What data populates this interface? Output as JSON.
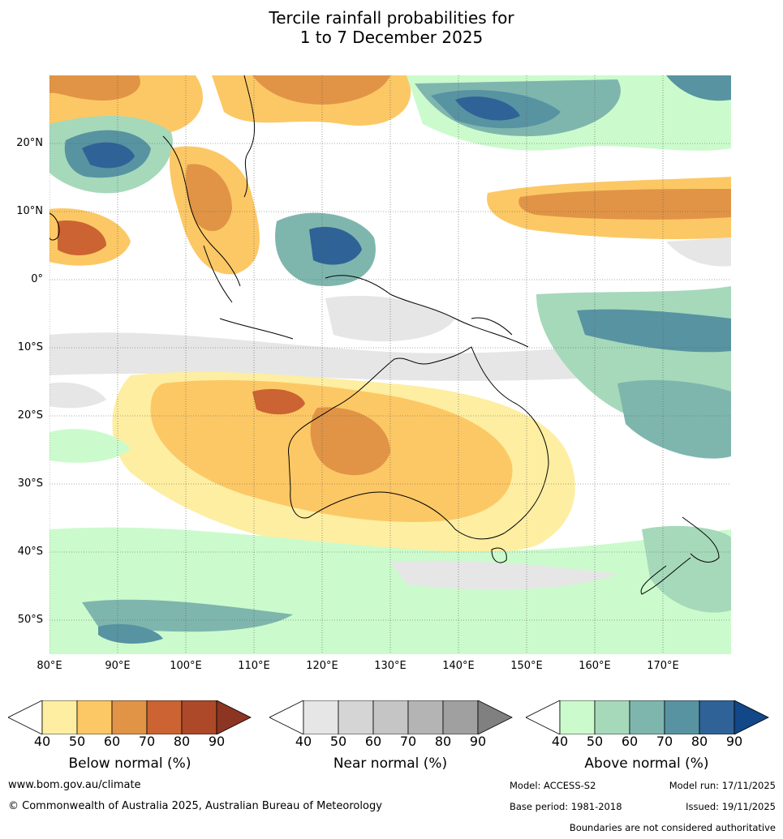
{
  "title": {
    "line1": "Tercile rainfall probabilities for",
    "line2": "1 to 7 December 2025"
  },
  "map": {
    "lon_range": [
      80,
      180
    ],
    "lat_range": [
      -55,
      30
    ],
    "lat_labels": [
      "20°N",
      "10°N",
      "0°",
      "10°S",
      "20°S",
      "30°S",
      "40°S",
      "50°S"
    ],
    "lat_values": [
      20,
      10,
      0,
      -10,
      -20,
      -30,
      -40,
      -50
    ],
    "lon_labels": [
      "80°E",
      "90°E",
      "100°E",
      "110°E",
      "120°E",
      "130°E",
      "140°E",
      "150°E",
      "160°E",
      "170°E"
    ],
    "lon_values": [
      80,
      90,
      100,
      110,
      120,
      130,
      140,
      150,
      160,
      170
    ]
  },
  "colorbars": [
    {
      "label": "Below normal (%)",
      "ticks": [
        "40",
        "50",
        "60",
        "70",
        "80",
        "90"
      ],
      "colors": [
        "#fdeea2",
        "#fcc865",
        "#e19446",
        "#cb6332",
        "#ad4828"
      ],
      "extend_color": "#8c3522"
    },
    {
      "label": "Near normal (%)",
      "ticks": [
        "40",
        "50",
        "60",
        "70",
        "80",
        "90"
      ],
      "colors": [
        "#e6e6e6",
        "#d5d5d5",
        "#c5c5c5",
        "#b4b4b4",
        "#a0a0a0"
      ],
      "extend_color": "#808080"
    },
    {
      "label": "Above normal (%)",
      "ticks": [
        "40",
        "50",
        "60",
        "70",
        "80",
        "90"
      ],
      "colors": [
        "#cbfbcc",
        "#a5d9ba",
        "#7eb6ae",
        "#5893a2",
        "#2f6397"
      ],
      "extend_color": "#124788"
    }
  ],
  "footer": {
    "website": "www.bom.gov.au/climate",
    "copyright": "© Commonwealth of Australia 2025, Australian Bureau of Meteorology",
    "model": "Model: ACCESS-S2",
    "model_run": "Model run: 17/11/2025",
    "base_period": "Base period: 1981-2018",
    "issued": "Issued: 19/11/2025",
    "disclaimer": "Boundaries are not considered authoritative"
  }
}
